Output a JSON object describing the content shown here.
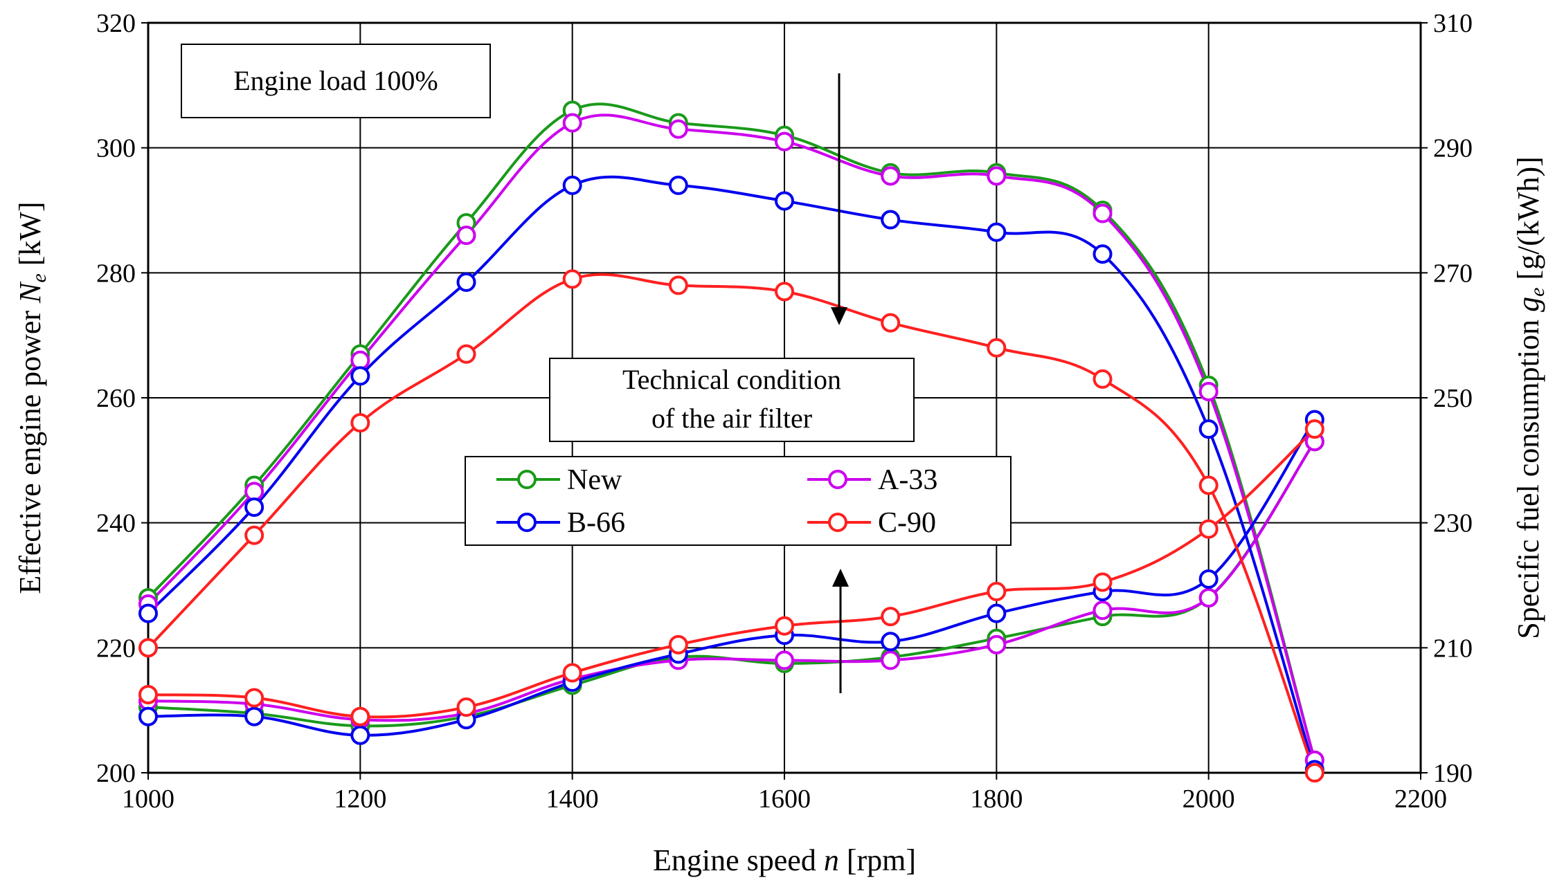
{
  "chart_data": {
    "type": "line",
    "title": "",
    "xlabel": "Engine speed n [rpm]",
    "xlabel_parts": {
      "text": "Engine speed ",
      "var": "n",
      "unit": " [rpm]"
    },
    "ylabel_left": "Effective engine power Ne [kW]",
    "ylabel_left_parts": {
      "text": "Effective engine power ",
      "var": "N",
      "sub": "e",
      "unit": " [kW]"
    },
    "ylabel_right": "Specific fuel consumption ge [g/(kWh)]",
    "ylabel_right_parts": {
      "text": "Specific fuel consumption ",
      "var": "g",
      "sub": "e",
      "unit": " [g/(kWh)]"
    },
    "xlim": [
      1000,
      2200
    ],
    "ylim_left": [
      200,
      320
    ],
    "ylim_right": [
      190,
      310
    ],
    "x_ticks": [
      "1000",
      "1200",
      "1400",
      "1600",
      "1800",
      "2000",
      "2200"
    ],
    "y_left_ticks": [
      "200",
      "220",
      "240",
      "260",
      "280",
      "300",
      "320"
    ],
    "y_right_ticks": [
      "190",
      "210",
      "230",
      "250",
      "270",
      "290",
      "310"
    ],
    "grid": true,
    "legend_position": "center",
    "x": [
      1000,
      1100,
      1200,
      1300,
      1400,
      1500,
      1600,
      1700,
      1800,
      1900,
      2000,
      2100
    ],
    "annotations": {
      "load_box": "Engine load 100%",
      "filter_box_line1": "Technical condition",
      "filter_box_line2": "of the air filter"
    },
    "series": [
      {
        "name": "New",
        "color": "#1a9a1a",
        "power": [
          228,
          246,
          267,
          288,
          306,
          304,
          302,
          296,
          296,
          290,
          262,
          202
        ],
        "sfc": [
          200.5,
          199.5,
          197.5,
          199,
          204,
          208.5,
          207.5,
          208.5,
          211.5,
          215,
          218,
          243
        ]
      },
      {
        "name": "A-33",
        "color": "#cc00ee",
        "power": [
          227,
          245,
          266,
          286,
          304,
          303,
          301,
          295.5,
          295.5,
          289.5,
          261,
          202
        ],
        "sfc": [
          201.5,
          201,
          198.5,
          199.5,
          205,
          208,
          208,
          208,
          210.5,
          216,
          218,
          243
        ]
      },
      {
        "name": "B-66",
        "color": "#0000ee",
        "power": [
          225.5,
          242.5,
          263.5,
          278.5,
          294,
          294,
          291.5,
          288.5,
          286.5,
          283,
          255,
          200.5
        ],
        "sfc": [
          199,
          199,
          196,
          198.5,
          204.5,
          209,
          212,
          211,
          215.5,
          219,
          221,
          246.5
        ]
      },
      {
        "name": "C-90",
        "color": "#ff2020",
        "power": [
          220,
          238,
          256,
          267,
          279,
          278,
          277,
          272,
          268,
          263,
          246,
          200
        ],
        "sfc": [
          202.5,
          202,
          199,
          200.5,
          206,
          210.5,
          213.5,
          215,
          219,
          220.5,
          229,
          245
        ]
      }
    ]
  }
}
